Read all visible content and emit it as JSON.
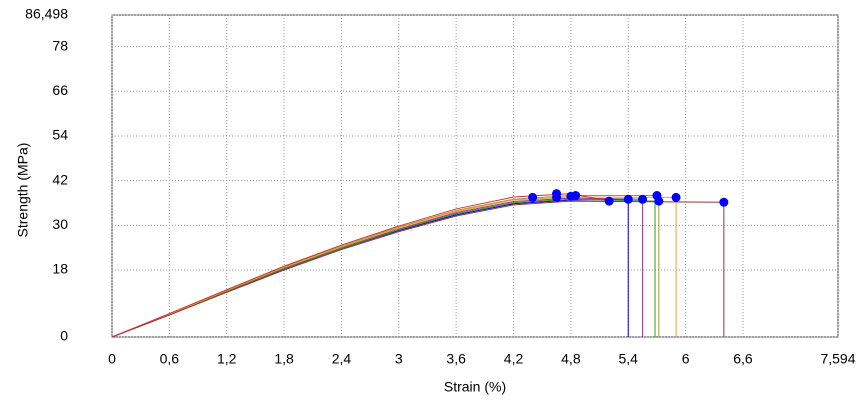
{
  "chart_data": {
    "type": "line",
    "x_label": "Strain (%)",
    "y_label": "Strength (MPa)",
    "xlim": [
      0,
      7.594
    ],
    "xticks": [
      0,
      {
        "value": 0.6,
        "label": "0,6"
      },
      {
        "value": 1.2,
        "label": "1,2"
      },
      {
        "value": 1.8,
        "label": "1,8"
      },
      {
        "value": 2.4,
        "label": "2,4"
      },
      3,
      {
        "value": 3.6,
        "label": "3,6"
      },
      {
        "value": 4.2,
        "label": "4,2"
      },
      {
        "value": 4.8,
        "label": "4,8"
      },
      {
        "value": 5.4,
        "label": "5,4"
      },
      6,
      {
        "value": 6.6,
        "label": "6,6"
      },
      {
        "value": 7.594,
        "label": "7,594"
      }
    ],
    "ylim": [
      0,
      86.498
    ],
    "yticks": [
      0,
      18,
      30,
      42,
      54,
      66,
      78,
      {
        "value": 86.498,
        "label": "86,498"
      }
    ],
    "grid": true,
    "series": [
      {
        "color": "#0000cc",
        "x": [
          0,
          0.6,
          1.2,
          1.8,
          2.4,
          3,
          3.6,
          4.2,
          4.8,
          5.4,
          5.4
        ],
        "values": [
          0,
          6,
          12.2,
          18.3,
          23.8,
          28.6,
          32.8,
          35.8,
          36.8,
          37,
          0
        ]
      },
      {
        "color": "#993399",
        "x": [
          0,
          0.6,
          1.2,
          1.8,
          2.4,
          3,
          3.6,
          4.2,
          4.8,
          5.55,
          5.55
        ],
        "values": [
          0,
          6.1,
          12.4,
          18.5,
          24,
          29,
          33.4,
          36.4,
          37.3,
          37,
          0
        ]
      },
      {
        "color": "#339933",
        "x": [
          0,
          0.6,
          1.2,
          1.8,
          2.4,
          3,
          3.6,
          4.2,
          4.8,
          5.68,
          5.68
        ],
        "values": [
          0,
          6,
          12.3,
          18.4,
          23.9,
          28.8,
          33.1,
          36.1,
          37,
          36.5,
          0
        ]
      },
      {
        "color": "#999933",
        "x": [
          0,
          0.6,
          1.2,
          1.8,
          2.4,
          3,
          3.6,
          4.2,
          4.8,
          5.72,
          5.72
        ],
        "values": [
          0,
          6.2,
          12.6,
          18.8,
          24.4,
          29.5,
          34,
          37,
          38,
          38,
          0
        ]
      },
      {
        "color": "#ff9933",
        "x": [
          0,
          0.6,
          1.2,
          1.8,
          2.4,
          3,
          3.6,
          4.2,
          4.8,
          5.9,
          5.9
        ],
        "values": [
          0,
          6.1,
          12.5,
          18.7,
          24.2,
          29.3,
          33.7,
          36.8,
          37.6,
          37.5,
          0
        ]
      },
      {
        "color": "#993333",
        "x": [
          0,
          0.6,
          1.2,
          1.8,
          2.4,
          3,
          3.6,
          4.2,
          4.8,
          6.4,
          6.4
        ],
        "values": [
          0,
          5.9,
          12,
          18,
          23.5,
          28.3,
          32.5,
          35.5,
          36.5,
          36.2,
          0
        ]
      },
      {
        "color": "#cc3333",
        "x": [
          0,
          0.6,
          1.2,
          1.8,
          2.4,
          3,
          3.6,
          4.2,
          4.8,
          5.2
        ],
        "values": [
          0,
          6.3,
          12.7,
          19,
          24.7,
          29.8,
          34.4,
          37.6,
          38.5,
          36.5
        ]
      }
    ],
    "markers": {
      "color": "#0000ff",
      "x": [
        4.4,
        4.65,
        4.65,
        4.8,
        4.85,
        5.2,
        5.4,
        5.55,
        5.7,
        5.72,
        5.9,
        6.4
      ],
      "values": [
        37.5,
        38.5,
        37.5,
        37.8,
        38,
        36.5,
        37,
        37,
        38,
        36.5,
        37.5,
        36.2
      ]
    }
  }
}
